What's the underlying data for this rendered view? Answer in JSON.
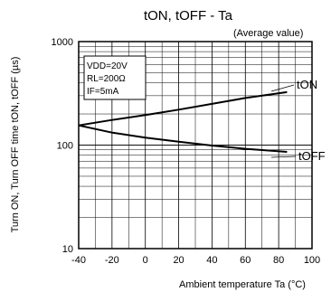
{
  "chart_data": {
    "type": "line",
    "title": "tON, tOFF - Ta",
    "subtitle": "(Average value)",
    "xlabel": "Ambient temperature Ta (°C)",
    "ylabel": "Turn ON, Turn OFF time tON, tOFF (µs)",
    "xlim": [
      -40,
      100
    ],
    "ylim": [
      10,
      1000
    ],
    "y_scale": "log",
    "grid": true,
    "x_ticks": [
      -40,
      -20,
      0,
      20,
      40,
      60,
      80,
      100
    ],
    "x_tick_labels": [
      "-40",
      "-20",
      "0",
      "20",
      "40",
      "60",
      "80",
      "100"
    ],
    "y_tick_labels": [
      "10",
      "100",
      "1000"
    ],
    "conditions": [
      "VDD=20V",
      "RL=200Ω",
      "IF=5mA"
    ],
    "series": [
      {
        "name": "tON",
        "x": [
          -40,
          -20,
          0,
          20,
          40,
          60,
          85
        ],
        "y": [
          155,
          175,
          195,
          220,
          250,
          285,
          325
        ]
      },
      {
        "name": "tOFF",
        "x": [
          -40,
          -20,
          0,
          20,
          40,
          60,
          85
        ],
        "y": [
          155,
          132,
          118,
          108,
          99,
          92,
          86
        ]
      }
    ],
    "colors": {
      "line": "#000000",
      "grid": "#000000"
    }
  }
}
